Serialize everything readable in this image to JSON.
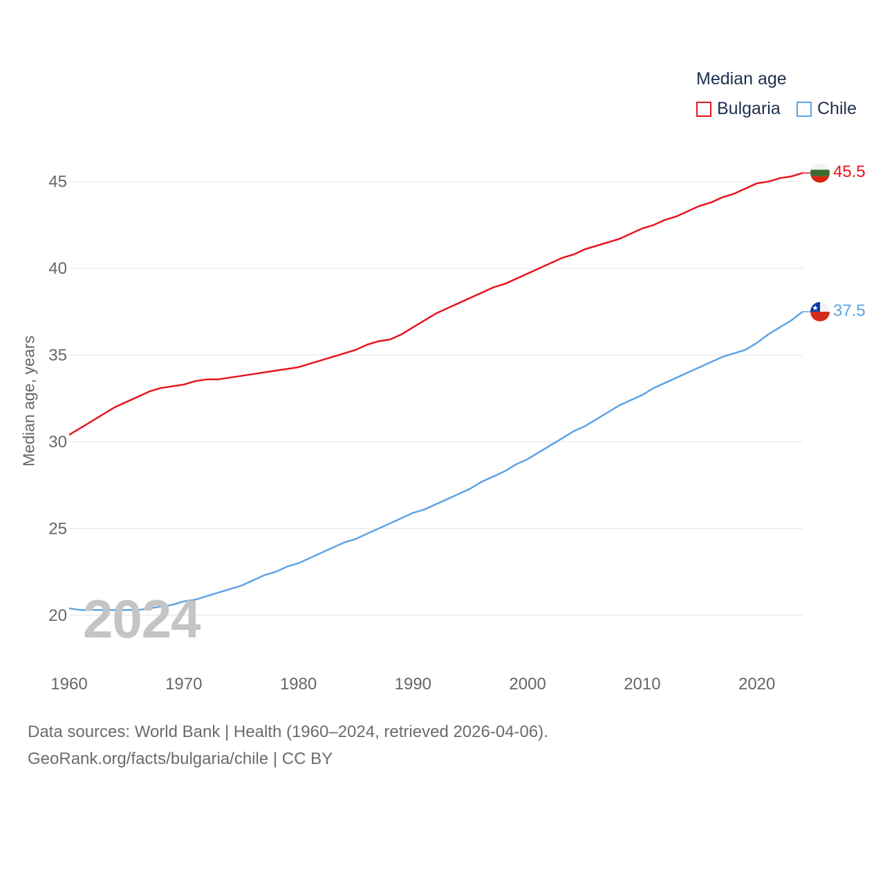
{
  "chart_data": {
    "type": "line",
    "legend_title": "Median age",
    "ylabel": "Median age, years",
    "xlabel": "",
    "xlim": [
      1960,
      2024
    ],
    "ylim": [
      18,
      47.5
    ],
    "x_ticks": [
      1960,
      1970,
      1980,
      1990,
      2000,
      2010,
      2020
    ],
    "y_ticks": [
      20,
      25,
      30,
      35,
      40,
      45
    ],
    "grid": true,
    "legend_position": "top-right",
    "year_watermark": "2024",
    "x": [
      1960,
      1961,
      1962,
      1963,
      1964,
      1965,
      1966,
      1967,
      1968,
      1969,
      1970,
      1971,
      1972,
      1973,
      1974,
      1975,
      1976,
      1977,
      1978,
      1979,
      1980,
      1981,
      1982,
      1983,
      1984,
      1985,
      1986,
      1987,
      1988,
      1989,
      1990,
      1991,
      1992,
      1993,
      1994,
      1995,
      1996,
      1997,
      1998,
      1999,
      2000,
      2001,
      2002,
      2003,
      2004,
      2005,
      2006,
      2007,
      2008,
      2009,
      2010,
      2011,
      2012,
      2013,
      2014,
      2015,
      2016,
      2017,
      2018,
      2019,
      2020,
      2021,
      2022,
      2023,
      2024
    ],
    "series": [
      {
        "name": "Bulgaria",
        "color": "#e8141c",
        "end_label": "45.5",
        "flag": "bulgaria-flag",
        "values": [
          30.4,
          30.8,
          31.2,
          31.6,
          32.0,
          32.3,
          32.6,
          32.9,
          33.1,
          33.2,
          33.3,
          33.5,
          33.6,
          33.6,
          33.7,
          33.8,
          33.9,
          34.0,
          34.1,
          34.2,
          34.3,
          34.5,
          34.7,
          34.9,
          35.1,
          35.3,
          35.6,
          35.8,
          35.9,
          36.2,
          36.6,
          37.0,
          37.4,
          37.7,
          38.0,
          38.3,
          38.6,
          38.9,
          39.1,
          39.4,
          39.7,
          40.0,
          40.3,
          40.6,
          40.8,
          41.1,
          41.3,
          41.5,
          41.7,
          42.0,
          42.3,
          42.5,
          42.8,
          43.0,
          43.3,
          43.6,
          43.8,
          44.1,
          44.3,
          44.6,
          44.9,
          45.0,
          45.2,
          45.3,
          45.5
        ]
      },
      {
        "name": "Chile",
        "color": "#5ea3e4",
        "end_label": "37.5",
        "flag": "chile-flag",
        "values": [
          20.4,
          20.3,
          20.3,
          20.3,
          20.3,
          20.3,
          20.3,
          20.4,
          20.5,
          20.6,
          20.8,
          20.9,
          21.1,
          21.3,
          21.5,
          21.7,
          22.0,
          22.3,
          22.5,
          22.8,
          23.0,
          23.3,
          23.6,
          23.9,
          24.2,
          24.4,
          24.7,
          25.0,
          25.3,
          25.6,
          25.9,
          26.1,
          26.4,
          26.7,
          27.0,
          27.3,
          27.7,
          28.0,
          28.3,
          28.7,
          29.0,
          29.4,
          29.8,
          30.2,
          30.6,
          30.9,
          31.3,
          31.7,
          32.1,
          32.4,
          32.7,
          33.1,
          33.4,
          33.7,
          34.0,
          34.3,
          34.6,
          34.9,
          35.1,
          35.3,
          35.7,
          36.2,
          36.6,
          37.0,
          37.5
        ]
      }
    ]
  },
  "footer": {
    "source_line": "Data sources: World Bank | Health (1960–2024, retrieved 2026-04-06).",
    "credit_line": "GeoRank.org/facts/bulgaria/chile | CC BY"
  }
}
